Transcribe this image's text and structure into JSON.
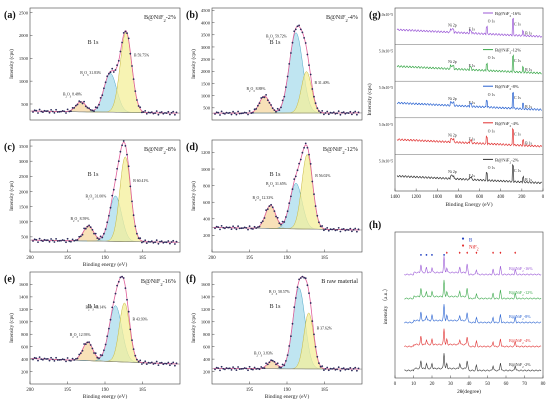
{
  "chart_data": [
    {
      "type": "line",
      "panel": "(a)",
      "sample": "B@NiF2-2%",
      "xlabel": "",
      "ylabel": "Intensity (cps)",
      "xlim": [
        200,
        180
      ],
      "x_ticks": [],
      "ylim": [
        150,
        2600
      ],
      "y_ticks": [
        500,
        1000,
        1500,
        2000,
        2500
      ],
      "annotations": [
        "B 1s",
        "B2O3 8.48%",
        "B2O3 31.83%",
        "B 59.75%"
      ],
      "series": [
        {
          "kind": "measured",
          "x": [
            199,
            197,
            195,
            194,
            193,
            192,
            191,
            190,
            189.5,
            189,
            188,
            187.5,
            187,
            186.5,
            186,
            185.5,
            185,
            184,
            183,
            182,
            181
          ],
          "y": [
            350,
            370,
            420,
            450,
            600,
            500,
            420,
            700,
            1100,
            1300,
            1700,
            2000,
            2250,
            1900,
            1500,
            1050,
            700,
            400,
            330,
            310,
            300
          ]
        },
        {
          "kind": "component",
          "label": "B2O3 8.48%",
          "center": 193.2,
          "fwhm": 1.6,
          "height": 220
        },
        {
          "kind": "component",
          "label": "B2O3 31.83%",
          "center": 189.3,
          "fwhm": 2.0,
          "height": 850
        },
        {
          "kind": "component",
          "label": "B 59.75%",
          "center": 187.2,
          "fwhm": 1.8,
          "height": 1750
        }
      ]
    },
    {
      "type": "line",
      "panel": "(b)",
      "sample": "B@NiF2-4%",
      "xlabel": "",
      "ylabel": "Intensity (cps)",
      "xlim": [
        200,
        180
      ],
      "x_ticks": [],
      "ylim": [
        0,
        4600
      ],
      "y_ticks": [
        500,
        1000,
        1500,
        2000,
        2500,
        3000,
        3500,
        4000,
        4500
      ],
      "annotations": [
        "B 1s",
        "B2O3 8.88%",
        "B2O3 59.72%",
        "B 31.40%"
      ],
      "series": [
        {
          "kind": "measured",
          "x": [
            199,
            197,
            195,
            194,
            193,
            192,
            191,
            190,
            189.5,
            189,
            188,
            187.5,
            187,
            186.5,
            186,
            185.5,
            185,
            184,
            183,
            182,
            181
          ],
          "y": [
            280,
            300,
            400,
            600,
            1100,
            900,
            700,
            1700,
            2600,
            3300,
            4100,
            4000,
            3500,
            2600,
            1700,
            1000,
            650,
            400,
            330,
            300,
            290
          ]
        },
        {
          "kind": "component",
          "label": "B2O3 8.88%",
          "center": 193.0,
          "fwhm": 1.6,
          "height": 700
        },
        {
          "kind": "component",
          "label": "B2O3 59.72%",
          "center": 188.8,
          "fwhm": 2.1,
          "height": 3300
        },
        {
          "kind": "component",
          "label": "B 31.40%",
          "center": 187.4,
          "fwhm": 1.6,
          "height": 1700
        }
      ]
    },
    {
      "type": "line",
      "panel": "(c)",
      "sample": "B@NiF2-8%",
      "xlabel": "Binding energy (eV)",
      "ylabel": "Intensity (cps)",
      "xlim": [
        200,
        180
      ],
      "x_ticks": [
        200,
        195,
        190,
        185
      ],
      "ylim": [
        0,
        3700
      ],
      "y_ticks": [
        500,
        1000,
        1500,
        2000,
        2500,
        3000,
        3500
      ],
      "annotations": [
        "B 1s",
        "B2O3 8.59%",
        "B2O3 31.00%",
        "B 60.41%"
      ],
      "series": [
        {
          "kind": "measured",
          "x": [
            200,
            198,
            196,
            194,
            193,
            192,
            191,
            190,
            189,
            188,
            187.5,
            187,
            186.5,
            186,
            185.5,
            185,
            184,
            183,
            182,
            181
          ],
          "y": [
            400,
            380,
            420,
            480,
            750,
            950,
            700,
            900,
            1800,
            2800,
            3300,
            3200,
            2700,
            2000,
            1300,
            800,
            450,
            350,
            330,
            320
          ]
        },
        {
          "kind": "component",
          "label": "B2O3 8.59%",
          "center": 192.2,
          "fwhm": 1.6,
          "height": 500
        },
        {
          "kind": "component",
          "label": "B2O3 31.00%",
          "center": 188.6,
          "fwhm": 1.9,
          "height": 1500
        },
        {
          "kind": "component",
          "label": "B 60.41%",
          "center": 187.3,
          "fwhm": 1.7,
          "height": 2800
        }
      ]
    },
    {
      "type": "line",
      "panel": "(d)",
      "sample": "B@NiF2-12%",
      "xlabel": "",
      "ylabel": "Intensity (cps)",
      "xlim": [
        200,
        180
      ],
      "x_ticks": [
        200,
        195,
        190,
        185
      ],
      "ylim": [
        0,
        1350
      ],
      "y_ticks": [
        200,
        400,
        600,
        800,
        1000,
        1200
      ],
      "annotations": [
        "B 1s",
        "B2O3 12.33%",
        "B2O3 31.65%",
        "B 56.02%"
      ],
      "series": [
        {
          "kind": "measured",
          "x": [
            200,
            198,
            196,
            194,
            193,
            192,
            191,
            190,
            189,
            188,
            187.5,
            187,
            186.5,
            186,
            185.5,
            185,
            184,
            183,
            182,
            181
          ],
          "y": [
            300,
            310,
            330,
            380,
            500,
            620,
            420,
            500,
            800,
            1100,
            1200,
            1150,
            950,
            700,
            480,
            360,
            300,
            280,
            270,
            265
          ]
        },
        {
          "kind": "component",
          "label": "B2O3 12.33%",
          "center": 192.2,
          "fwhm": 1.6,
          "height": 280
        },
        {
          "kind": "component",
          "label": "B2O3 31.65%",
          "center": 188.8,
          "fwhm": 1.9,
          "height": 550
        },
        {
          "kind": "component",
          "label": "B 56.02%",
          "center": 187.3,
          "fwhm": 1.7,
          "height": 900
        }
      ]
    },
    {
      "type": "line",
      "panel": "(e)",
      "sample": "B@NiF2-16%",
      "xlabel": "Binding energy (eV)",
      "ylabel": "Intensity (cps)",
      "xlim": [
        200,
        180
      ],
      "x_ticks": [
        200,
        195,
        190,
        185
      ],
      "ylim": [
        0,
        1800
      ],
      "y_ticks": [
        200,
        400,
        600,
        800,
        1000,
        1200,
        1400,
        1600
      ],
      "annotations": [
        "B 1s",
        "B2O3 12.93%",
        "B2O3 43.14%",
        "B 43.93%"
      ],
      "series": [
        {
          "kind": "measured",
          "x": [
            200,
            198,
            196,
            194,
            193,
            192,
            191,
            190,
            189,
            188,
            187.5,
            187,
            186.5,
            186,
            185.5,
            185,
            184,
            183,
            182,
            181
          ],
          "y": [
            420,
            400,
            400,
            450,
            600,
            700,
            560,
            700,
            1100,
            1500,
            1650,
            1600,
            1350,
            1000,
            700,
            480,
            380,
            340,
            330,
            320
          ]
        },
        {
          "kind": "component",
          "label": "B2O3 12.93%",
          "center": 192.3,
          "fwhm": 1.6,
          "height": 300
        },
        {
          "kind": "component",
          "label": "B2O3 43.14%",
          "center": 188.6,
          "fwhm": 2.0,
          "height": 900
        },
        {
          "kind": "component",
          "label": "B 43.93%",
          "center": 187.4,
          "fwhm": 1.6,
          "height": 950
        }
      ]
    },
    {
      "type": "line",
      "panel": "(f)",
      "sample": "B raw material",
      "xlabel": "Binding energy (eV)",
      "ylabel": "Intensity (cps)",
      "xlim": [
        200,
        180
      ],
      "x_ticks": [
        195,
        190,
        185
      ],
      "ylim": [
        0,
        1800
      ],
      "y_ticks": [
        200,
        400,
        600,
        800,
        1000,
        1200,
        1400,
        1600
      ],
      "annotations": [
        "B 1s",
        "B2O3 3.83%",
        "B2O3 58.57%",
        "B 37.62%"
      ],
      "series": [
        {
          "kind": "measured",
          "x": [
            199,
            197,
            195,
            193,
            192,
            191,
            190,
            189,
            188,
            187.5,
            187,
            186.5,
            186,
            185.5,
            185,
            184,
            183,
            182,
            181
          ],
          "y": [
            250,
            250,
            260,
            300,
            380,
            330,
            420,
            800,
            1400,
            1650,
            1600,
            1300,
            900,
            550,
            350,
            270,
            250,
            240,
            240
          ]
        },
        {
          "kind": "component",
          "label": "B2O3 3.83%",
          "center": 192.0,
          "fwhm": 1.4,
          "height": 130
        },
        {
          "kind": "component",
          "label": "B2O3 58.57%",
          "center": 188.4,
          "fwhm": 1.9,
          "height": 1300
        },
        {
          "kind": "component",
          "label": "B 37.62%",
          "center": 187.1,
          "fwhm": 1.5,
          "height": 900
        }
      ]
    },
    {
      "type": "line",
      "panel": "(g)",
      "xlabel": "Binding Energy (eV)",
      "ylabel": "Intensity (cps)",
      "xlim": [
        1400,
        0
      ],
      "x_ticks": [
        1400,
        1200,
        1000,
        800,
        600,
        400,
        200,
        0
      ],
      "y_tick_labels": [
        "5.0x10^5",
        "5.0x10^5",
        "5.0x10^5",
        "5.0x10^5",
        "5.0x10^5"
      ],
      "peak_labels": [
        "Ni 2p",
        "F 1s",
        "O 1s",
        "C 1s",
        "B 1s"
      ],
      "series": [
        {
          "name": "B@NiF2-16%",
          "color": "#9b59d6"
        },
        {
          "name": "B@NiF2-12%",
          "color": "#3aa84a"
        },
        {
          "name": "B@NiF2-8%",
          "color": "#2660d0"
        },
        {
          "name": "B@NiF2-4%",
          "color": "#e03030"
        },
        {
          "name": "B@NiF2-2%",
          "color": "#333333"
        }
      ],
      "peaks_eV": [
        860,
        685,
        532,
        284,
        188
      ]
    },
    {
      "type": "line",
      "panel": "(h)",
      "xlabel": "2θ(degree)",
      "ylabel": "intensity （a.u.）",
      "xlim": [
        0,
        80
      ],
      "x_ticks": [
        0,
        10,
        20,
        30,
        40,
        50,
        60,
        70,
        80
      ],
      "legend": [
        {
          "marker": "●",
          "label": "B",
          "color": "#2240c0"
        },
        {
          "marker": "♦",
          "label": "NiF2",
          "color": "#e02020"
        }
      ],
      "series": [
        {
          "name": "B@NiF2-16%",
          "color": "#9b59d6"
        },
        {
          "name": "B@NiF2-12%",
          "color": "#3aa84a"
        },
        {
          "name": "B@NiF2-8%",
          "color": "#2660d0"
        },
        {
          "name": "B@NiF2-4%",
          "color": "#e03030"
        },
        {
          "name": "B@NiF2-2%",
          "color": "#333333"
        }
      ],
      "peaks_2theta": [
        14,
        17,
        20,
        26.5,
        28,
        35,
        39,
        44,
        53,
        57,
        65
      ]
    }
  ],
  "panels": {
    "a": {
      "tag": "(a)",
      "sample": "B@NiF",
      "sub": "2",
      "tail": "-2%"
    },
    "b": {
      "tag": "(b)",
      "sample": "B@NiF",
      "sub": "2",
      "tail": "-4%"
    },
    "c": {
      "tag": "(c)",
      "sample": "B@NiF",
      "sub": "2",
      "tail": "-8%"
    },
    "d": {
      "tag": "(d)",
      "sample": "B@NiF",
      "sub": "2",
      "tail": "-12%"
    },
    "e": {
      "tag": "(e)",
      "sample": "B@NiF",
      "sub": "2",
      "tail": "-16%"
    },
    "f": {
      "tag": "(f)",
      "sample": "B raw material",
      "sub": "",
      "tail": ""
    },
    "g": {
      "tag": "(g)"
    },
    "h": {
      "tag": "(h)"
    }
  }
}
